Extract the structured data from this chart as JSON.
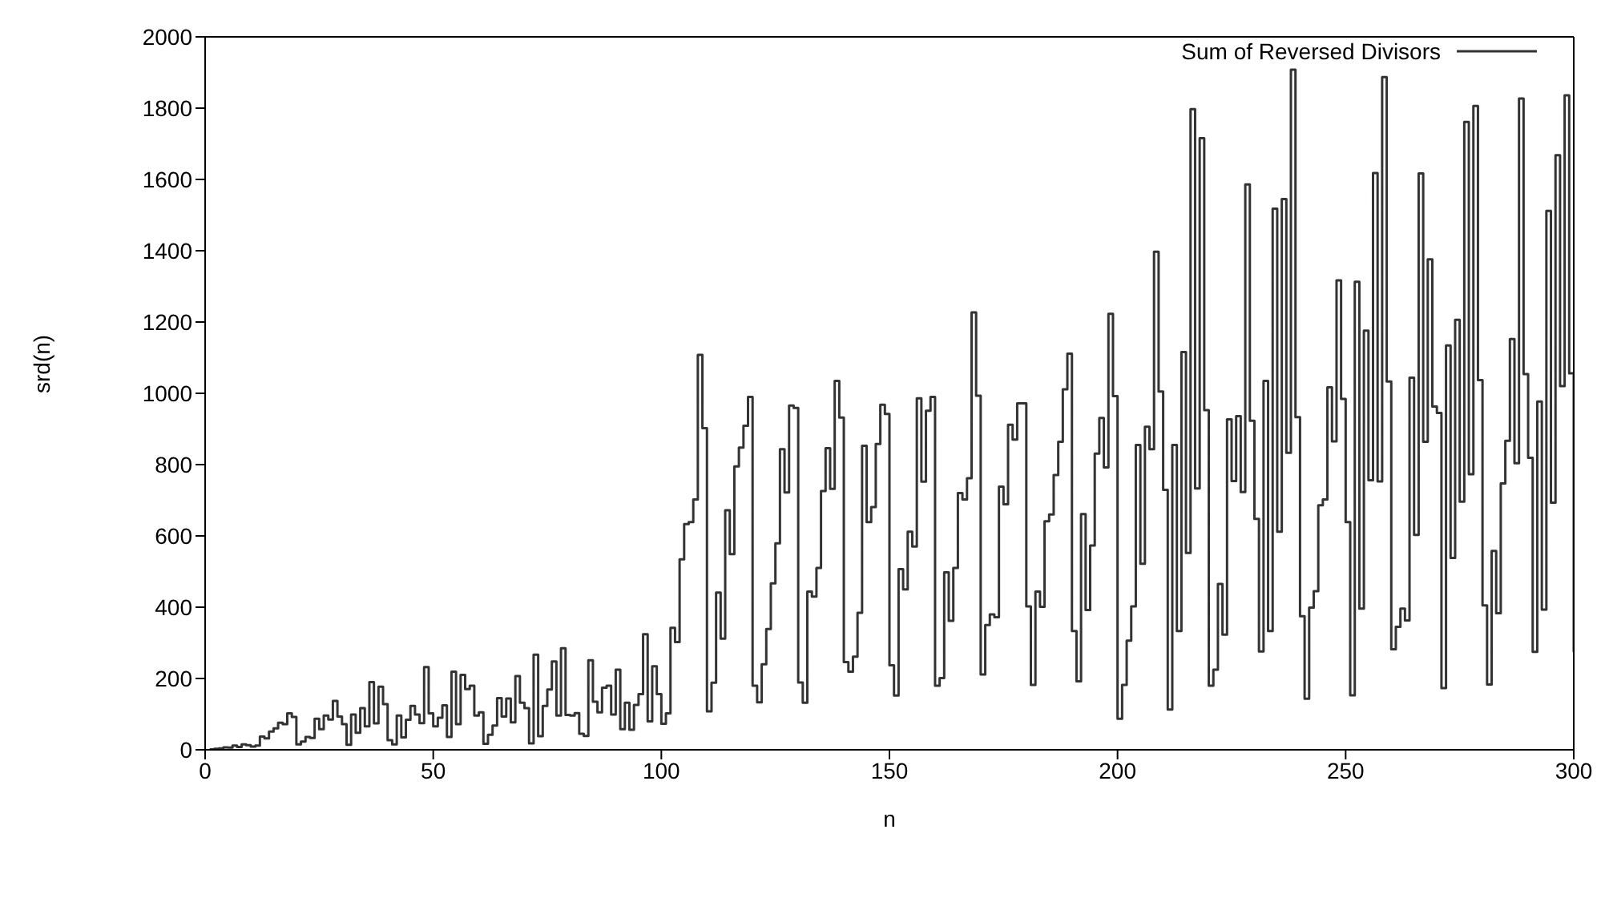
{
  "chart_data": {
    "type": "step",
    "xlabel": "n",
    "ylabel": "srd(n)",
    "xlim": [
      0,
      300
    ],
    "xticks": [
      0,
      50,
      100,
      150,
      200,
      250,
      300
    ],
    "ylim": [
      0,
      2000
    ],
    "yticks": [
      0,
      200,
      400,
      600,
      800,
      1000,
      1200,
      1400,
      1600,
      1800,
      2000
    ],
    "legend": "top right",
    "x": [
      1,
      2,
      3,
      4,
      5,
      6,
      7,
      8,
      9,
      10,
      11,
      12,
      13,
      14,
      15,
      16,
      17,
      18,
      19,
      20,
      21,
      22,
      23,
      24,
      25,
      26,
      27,
      28,
      29,
      30,
      31,
      32,
      33,
      34,
      35,
      36,
      37,
      38,
      39,
      40,
      41,
      42,
      43,
      44,
      45,
      46,
      47,
      48,
      49,
      50,
      51,
      52,
      53,
      54,
      55,
      56,
      57,
      58,
      59,
      60,
      61,
      62,
      63,
      64,
      65,
      66,
      67,
      68,
      69,
      70,
      71,
      72,
      73,
      74,
      75,
      76,
      77,
      78,
      79,
      80,
      81,
      82,
      83,
      84,
      85,
      86,
      87,
      88,
      89,
      90,
      91,
      92,
      93,
      94,
      95,
      96,
      97,
      98,
      99,
      100,
      101,
      102,
      103,
      104,
      105,
      106,
      107,
      108,
      109,
      110,
      111,
      112,
      113,
      114,
      115,
      116,
      117,
      118,
      119,
      120,
      121,
      122,
      123,
      124,
      125,
      126,
      127,
      128,
      129,
      130,
      131,
      132,
      133,
      134,
      135,
      136,
      137,
      138,
      139,
      140,
      141,
      142,
      143,
      144,
      145,
      146,
      147,
      148,
      149,
      150,
      151,
      152,
      153,
      154,
      155,
      156,
      157,
      158,
      159,
      160,
      161,
      162,
      163,
      164,
      165,
      166,
      167,
      168,
      169,
      170,
      171,
      172,
      173,
      174,
      175,
      176,
      177,
      178,
      179,
      180,
      181,
      182,
      183,
      184,
      185,
      186,
      187,
      188,
      189,
      190,
      191,
      192,
      193,
      194,
      195,
      196,
      197,
      198,
      199,
      200,
      201,
      202,
      203,
      204,
      205,
      206,
      207,
      208,
      209,
      210,
      211,
      212,
      213,
      214,
      215,
      216,
      217,
      218,
      219,
      220,
      221,
      222,
      223,
      224,
      225,
      226,
      227,
      228,
      229,
      230,
      231,
      232,
      233,
      234,
      235,
      236,
      237,
      238,
      239,
      240,
      241,
      242,
      243,
      244,
      245,
      246,
      247,
      248,
      249,
      250,
      251,
      252,
      253,
      254,
      255,
      256,
      257,
      258,
      259,
      260,
      261,
      262,
      263,
      264,
      265,
      266,
      267,
      268,
      269,
      270,
      271,
      272,
      273,
      274,
      275,
      276,
      277,
      278,
      279,
      280,
      281,
      282,
      283,
      284,
      285,
      286,
      287,
      288,
      289,
      290,
      291,
      292,
      293,
      294,
      295,
      296,
      297,
      298,
      299,
      300
    ],
    "series": [
      {
        "name": "Sum of Reversed Divisors",
        "color": "#333333",
        "values": [
          1,
          3,
          4,
          7,
          6,
          12,
          8,
          15,
          13,
          9,
          12,
          37,
          32,
          51,
          60,
          76,
          72,
          102,
          92,
          15,
          23,
          36,
          33,
          87,
          58,
          96,
          85,
          137,
          93,
          72,
          14,
          99,
          48,
          117,
          66,
          190,
          74,
          177,
          128,
          27,
          15,
          96,
          35,
          84,
          123,
          99,
          75,
          232,
          102,
          66,
          90,
          125,
          36,
          219,
          72,
          210,
          170,
          180,
          96,
          105,
          17,
          42,
          68,
          145,
          93,
          144,
          77,
          207,
          132,
          117,
          18,
          267,
          38,
          123,
          169,
          248,
          96,
          285,
          98,
          96,
          103,
          45,
          39,
          251,
          135,
          105,
          174,
          180,
          99,
          225,
          58,
          132,
          56,
          126,
          156,
          324,
          80,
          234,
          156,
          73,
          102,
          342,
          302,
          534,
          633,
          639,
          702,
          1108,
          902,
          108,
          188,
          441,
          312,
          672,
          549,
          795,
          848,
          909,
          990,
          180,
          133,
          240,
          339,
          467,
          579,
          843,
          722,
          966,
          959,
          189,
          132,
          444,
          430,
          510,
          726,
          846,
          732,
          1035,
          932,
          246,
          219,
          261,
          384,
          853,
          639,
          681,
          858,
          968,
          942,
          237,
          152,
          507,
          450,
          612,
          570,
          986,
          752,
          951,
          990,
          180,
          201,
          498,
          362,
          510,
          720,
          702,
          762,
          1227,
          993,
          211,
          350,
          380,
          372,
          738,
          689,
          912,
          870,
          972,
          972,
          402,
          182,
          444,
          401,
          641,
          660,
          771,
          864,
          1011,
          1111,
          333,
          192,
          661,
          392,
          573,
          831,
          931,
          792,
          1223,
          992,
          87,
          182,
          306,
          402,
          855,
          522,
          906,
          843,
          1397,
          1005,
          729,
          113,
          855,
          333,
          1116,
          552,
          1797,
          733,
          1716,
          953,
          180,
          225,
          465,
          323,
          927,
          754,
          936,
          723,
          1586,
          923,
          648,
          276,
          1035,
          333,
          1518,
          612,
          1545,
          833,
          1908,
          933,
          375,
          143,
          399,
          445,
          686,
          702,
          1017,
          865,
          1317,
          984,
          639,
          153,
          1313,
          396,
          1176,
          756,
          1618,
          753,
          1887,
          1033,
          282,
          345,
          396,
          363,
          1044,
          603,
          1617,
          864,
          1376,
          963,
          945,
          173,
          1134,
          538,
          1206,
          696,
          1761,
          773,
          1806,
          1037,
          405,
          183,
          558,
          383,
          747,
          867,
          1152,
          804,
          1827,
          1054,
          819,
          275,
          977,
          393,
          1512,
          693,
          1668,
          1020,
          1836,
          1056,
          274
        ]
      }
    ]
  }
}
